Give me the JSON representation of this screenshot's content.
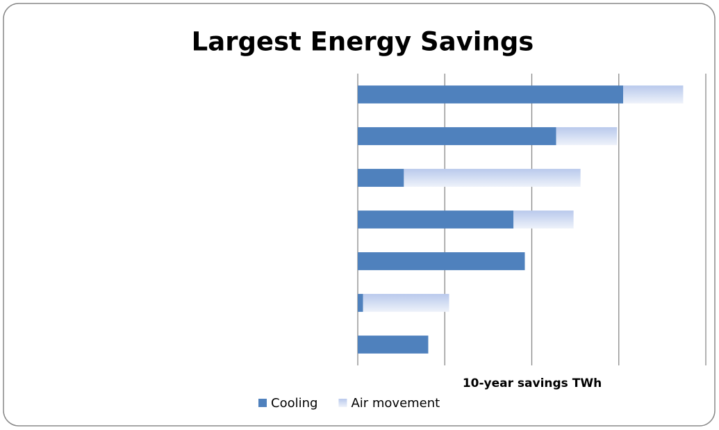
{
  "chart_data": {
    "type": "stacked_barh",
    "title": "Largest Energy Savings",
    "x_label": "10-year savings TWh",
    "categories": [
      null,
      null,
      null,
      null,
      null,
      null,
      null
    ],
    "series": [
      {
        "name": "Cooling",
        "color": "#4f81bd",
        "values": [
          3.05,
          2.28,
          0.53,
          1.79,
          1.92,
          0.06,
          0.81
        ]
      },
      {
        "name": "Air movement",
        "color": "#b9c9ec",
        "values": [
          0.69,
          0.7,
          2.03,
          0.69,
          0,
          0.99,
          0
        ]
      }
    ],
    "xlim": [
      0,
      4
    ],
    "xticks": [
      0,
      1,
      2,
      3,
      4
    ],
    "tick_labels": false,
    "grid": true,
    "legend": "bottom"
  }
}
